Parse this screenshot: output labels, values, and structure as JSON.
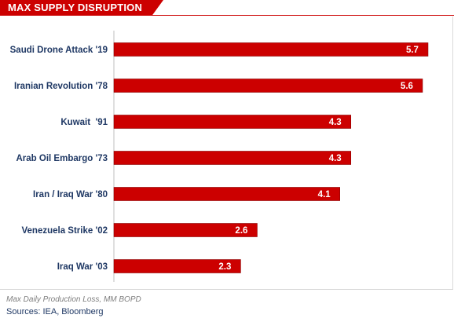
{
  "header": {
    "title": "MAX SUPPLY DISRUPTION"
  },
  "chart_data": {
    "type": "bar",
    "orientation": "horizontal",
    "title": "MAX SUPPLY DISRUPTION",
    "categories": [
      "Saudi Drone Attack '19",
      "Iranian Revolution '78",
      "Kuwait  '91",
      "Arab Oil Embargo '73",
      "Iran / Iraq War '80",
      "Venezuela Strike '02",
      "Iraq War '03"
    ],
    "values": [
      5.7,
      5.6,
      4.3,
      4.3,
      4.1,
      2.6,
      2.3
    ],
    "value_labels": [
      "5.7",
      "5.6",
      "4.3",
      "4.3",
      "4.1",
      "2.6",
      "2.3"
    ],
    "xlim": [
      0,
      6
    ],
    "bar_color": "#cc0000",
    "label_color": "#1f3864",
    "grid": false,
    "legend": false
  },
  "footer": {
    "note": "Max Daily Production Loss, MM BOPD",
    "sources": "Sources: IEA, Bloomberg"
  },
  "colors": {
    "accent": "#cc0000",
    "text_dark": "#1f3864",
    "note_gray": "#7f7f7f"
  }
}
